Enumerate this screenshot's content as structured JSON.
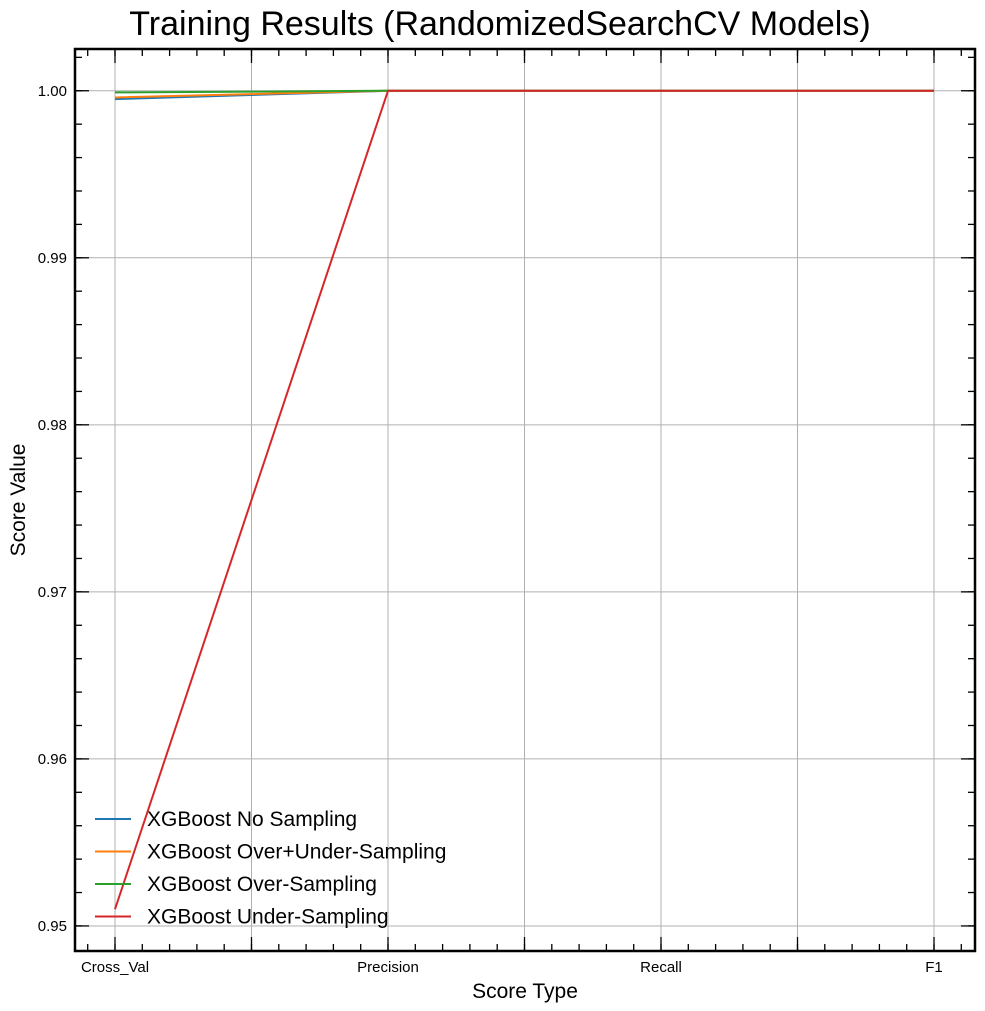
{
  "chart_data": {
    "type": "line",
    "title": "Training Results (RandomizedSearchCV Models)",
    "xlabel": "Score Type",
    "ylabel": "Score Value",
    "categories": [
      "Cross_Val",
      "Precision",
      "Recall",
      "F1"
    ],
    "ylim": [
      0.9485,
      1.0025
    ],
    "yticks": [
      "0.95",
      "0.96",
      "0.97",
      "0.98",
      "0.99",
      "1.00"
    ],
    "grid": true,
    "legend_position": "lower-left",
    "series": [
      {
        "name": "XGBoost No Sampling",
        "color": "#1f77b4",
        "values": [
          0.9995,
          1.0,
          1.0,
          1.0
        ]
      },
      {
        "name": "XGBoost Over+Under-Sampling",
        "color": "#ff7f0e",
        "values": [
          0.9996,
          1.0,
          1.0,
          1.0
        ]
      },
      {
        "name": "XGBoost Over-Sampling",
        "color": "#2ca02c",
        "values": [
          0.9999,
          1.0,
          1.0,
          1.0
        ]
      },
      {
        "name": "XGBoost Under-Sampling",
        "color": "#d62728",
        "values": [
          0.951,
          1.0,
          1.0,
          1.0
        ]
      }
    ]
  }
}
